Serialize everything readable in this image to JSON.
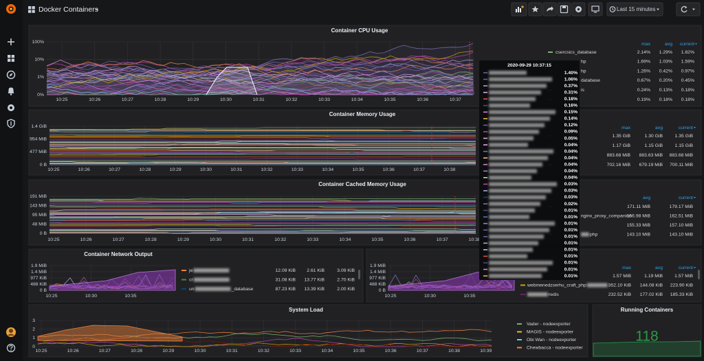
{
  "topbar": {
    "title": "Docker Containers",
    "time_range": "Last 15 minutes"
  },
  "panels": [
    {
      "title": "Container CPU Usage",
      "yticks": [
        "100%",
        "10%",
        "1%",
        "0%"
      ],
      "xticks": [
        "10:25",
        "10:26",
        "10:27",
        "10:28",
        "10:29",
        "10:30",
        "10:31",
        "10:32",
        "10:33",
        "10:34",
        "10:35",
        "10:36",
        "10:37"
      ],
      "legend": {
        "columns": [
          "max",
          "avg",
          "current"
        ],
        "rows": [
          {
            "name": "csercsics_database",
            "values": [
              "2.14%",
              "1.29%",
              "1.82%"
            ]
          },
          {
            "name": "hp",
            "values": [
              "1.69%",
              "1.03%",
              "1.59%"
            ]
          },
          {
            "name": "hp",
            "values": [
              "1.26%",
              "0.42%",
              "0.97%"
            ]
          },
          {
            "name": "database",
            "values": [
              "0.67%",
              "0.20%",
              "0.45%"
            ]
          },
          {
            "name": "is",
            "values": [
              "0.24%",
              "0.13%",
              "0.18%"
            ]
          },
          {
            "values": [
              "0.19%",
              "0.18%",
              "0.18%"
            ]
          }
        ]
      }
    },
    {
      "title": "Container Memory Usage",
      "yticks": [
        "1.4 GiB",
        "954 MiB",
        "477 MiB",
        "0 B"
      ],
      "xticks": [
        "10:25",
        "10:26",
        "10:27",
        "10:28",
        "10:29",
        "10:30",
        "10:31",
        "10:32",
        "10:33",
        "10:34",
        "10:35",
        "10:36",
        "10:37",
        "10:38"
      ],
      "legend": {
        "columns": [
          "max",
          "avg",
          "current"
        ],
        "rows": [
          {
            "values": [
              "1.35 GiB",
              "1.30 GiB",
              "1.35 GiB"
            ]
          },
          {
            "values": [
              "1.17 GiB",
              "1.15 GiB",
              "1.15 GiB"
            ]
          },
          {
            "values": [
              "883.68 MiB",
              "883.63 MiB",
              "883.68 MiB"
            ]
          },
          {
            "values": [
              "702.16 MiB",
              "679.19 MiB",
              "700.11 MiB"
            ]
          }
        ]
      }
    },
    {
      "title": "Container Cached Memory Usage",
      "yticks": [
        "191 MiB",
        "143 MiB",
        "95 MiB",
        "48 MiB",
        "0 B"
      ],
      "xticks": [
        "10:25",
        "10:26",
        "10:27",
        "10:28",
        "10:29",
        "10:30",
        "10:31",
        "10:32",
        "10:33",
        "10:34",
        "10:35",
        "10:36",
        "10:37",
        "10:38"
      ],
      "legend": {
        "columns": [
          "avg",
          "current"
        ],
        "rows": [
          {
            "values": [
              "171.11 MiB",
              "179.17 MiB"
            ]
          },
          {
            "name": "nginx_proxy_companion",
            "values": [
              "156.98 MiB",
              "162.51 MiB"
            ]
          },
          {
            "values": [
              "155.33 MiB",
              "157.10 MiB"
            ]
          },
          {
            "suffix": "php",
            "values": [
              "143.10 MiB",
              "143.10 MiB"
            ]
          }
        ]
      }
    },
    {
      "title": "Container Network Output",
      "yticks": [
        "1.9 MiB",
        "1.4 MiB",
        "977 KiB",
        "488 KiB",
        "0 B"
      ],
      "xticks": [
        "10:25",
        "10:30",
        "10:35"
      ],
      "legend": {
        "rows": [
          {
            "name": "je",
            "values": [
              "12.09 KiB",
              "2.61 KiB",
              "3.09 KiB"
            ]
          },
          {
            "name": "cr",
            "values": [
              "31.08 KiB",
              "13.77 KiB",
              "2.70 KiB"
            ]
          },
          {
            "name": "un",
            "suffix": "_database",
            "values": [
              "87.23 KiB",
              "13.39 KiB",
              "2.00 KiB"
            ]
          }
        ]
      }
    },
    {
      "yticks": [
        "1.9 MiB",
        "1.4 MiB",
        "977 KiB",
        "488 KiB",
        "0 B"
      ],
      "xticks": [
        "10:25",
        "10:30",
        "10:35"
      ],
      "legend": {
        "columns": [
          "max",
          "avg",
          "current"
        ],
        "rows": [
          {
            "values": [
              "1.57 MiB",
              "1.19 MiB",
              "1.57 MiB"
            ]
          },
          {
            "name": "webmenedzserhu_craft_php",
            "values": [
              "352.10 KiB",
              "144.08 KiB",
              "223.90 KiB"
            ]
          },
          {
            "suffix": "redis",
            "values": [
              "232.52 KiB",
              "177.02 KiB",
              "185.33 KiB"
            ]
          }
        ]
      }
    },
    {
      "title": "System Load",
      "yticks": [
        "3",
        "2",
        "1",
        "0"
      ],
      "xticks": [
        "10:25",
        "10:26",
        "10:27",
        "10:28",
        "10:29",
        "10:30",
        "10:31",
        "10:32",
        "10:33",
        "10:34",
        "10:35",
        "10:36",
        "10:37",
        "10:38",
        "10:39"
      ],
      "legend": {
        "rows": [
          {
            "name": "Vader - nodeexporter"
          },
          {
            "name": "MAGIS - nodeexporter"
          },
          {
            "name": "Obi Wan - nodeexporter"
          },
          {
            "name": "Chewbacca - nodeexporter"
          }
        ]
      }
    }
  ],
  "stat": {
    "title": "Running Containers",
    "value": "118"
  },
  "tooltip": {
    "time": "2020-09-29 10:37:15",
    "values": [
      "1.40%",
      "1.06%",
      "0.37%",
      "0.31%",
      "0.18%",
      "0.16%",
      "0.15%",
      "0.14%",
      "0.12%",
      "0.09%",
      "0.05%",
      "0.04%",
      "0.04%",
      "0.04%",
      "0.04%",
      "0.04%",
      "0.04%",
      "0.03%",
      "0.03%",
      "0.03%",
      "0.02%",
      "0.01%",
      "0.01%",
      "0.01%",
      "0.01%",
      "0.01%",
      "0.01%",
      "0.01%",
      "0.01%",
      "0.01%",
      "0.01%",
      "0.01%"
    ]
  }
}
